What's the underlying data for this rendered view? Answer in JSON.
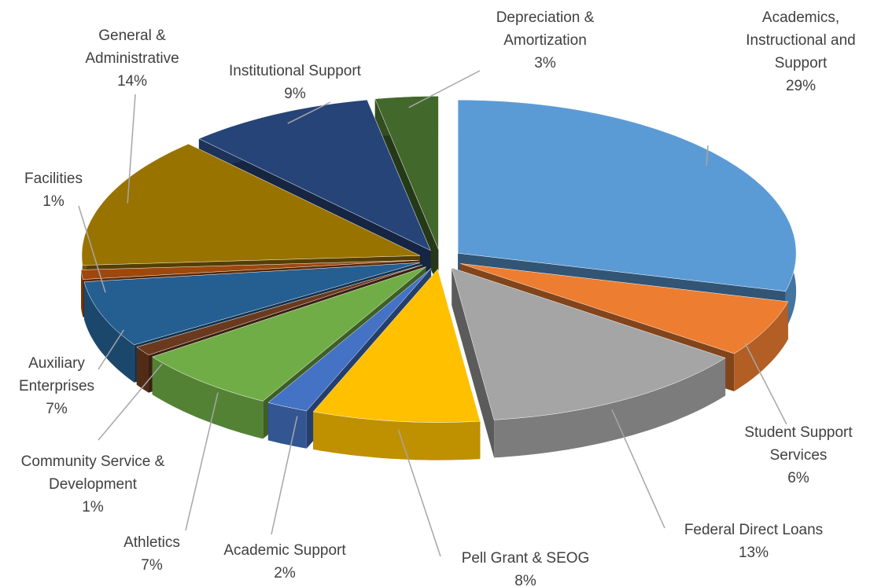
{
  "chart_data": {
    "type": "pie3d",
    "categories": [
      "Academics, Instructional and Support",
      "Student Support Services",
      "Federal Direct Loans",
      "Pell Grant & SEOG",
      "Academic Support",
      "Athletics",
      "Community Service & Development",
      "Auxiliary Enterprises",
      "Facilities",
      "General & Administrative",
      "Institutional Support",
      "Depreciation & Amortization"
    ],
    "values": [
      29,
      6,
      13,
      8,
      2,
      7,
      1,
      7,
      1,
      14,
      9,
      3
    ],
    "value_labels": [
      "29%",
      "6%",
      "13%",
      "8%",
      "2%",
      "7%",
      "1%",
      "7%",
      "1%",
      "14%",
      "9%",
      "3%"
    ],
    "colors": [
      "#5b9bd5",
      "#ed7d31",
      "#a5a5a5",
      "#ffc000",
      "#4472c4",
      "#70ad47",
      "#6b3a1e",
      "#255e91",
      "#9e480e",
      "#997300",
      "#264478",
      "#43682b"
    ]
  }
}
